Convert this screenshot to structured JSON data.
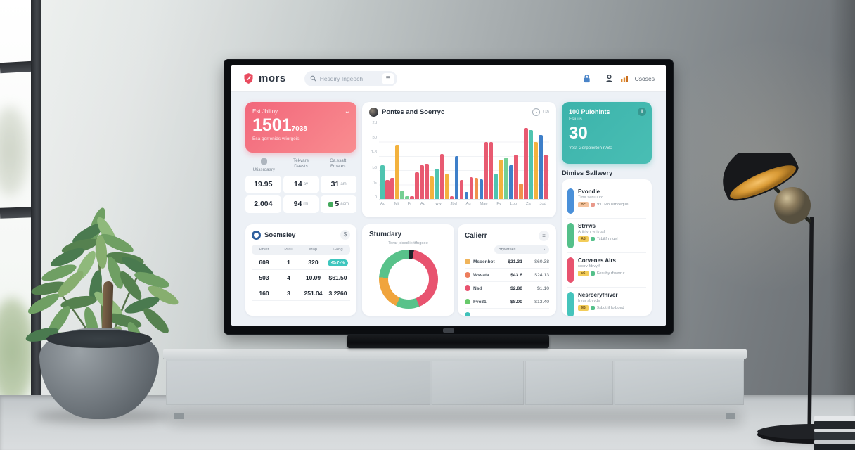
{
  "palette": {
    "t": "#4fc4b0",
    "r": "#e85a71",
    "y": "#f3b23e",
    "g": "#74cf93",
    "b": "#3e7fc9",
    "o": "#f0924d"
  },
  "topbar": {
    "brand": "mors",
    "search_placeholder": "Hesdiry Ingeoch",
    "right_label": "Csoses"
  },
  "kpi_pink": {
    "title": "Est Jhliloy",
    "value": "1501",
    "suffix": "7038",
    "subtitle": "Esa gerrenids vriorgeis"
  },
  "stats": {
    "columns": [
      {
        "l1": "",
        "l2": "Utissroasry",
        "icon": true
      },
      {
        "l1": "Tekvars",
        "l2": "Daests",
        "icon": false
      },
      {
        "l1": "Ca,ssaft",
        "l2": "Froates",
        "icon": false
      }
    ],
    "rows": [
      [
        {
          "v": "19.95",
          "u": ""
        },
        {
          "v": "14",
          "u": "ay"
        },
        {
          "v": "31",
          "u": "am"
        }
      ],
      [
        {
          "v": "2.004",
          "u": ""
        },
        {
          "v": "94",
          "u": "rm"
        },
        {
          "v": "5",
          "u": "aom",
          "icon": "green"
        }
      ]
    ]
  },
  "chart_card": {
    "title": "Pontes and Soerryc",
    "action": "Ua"
  },
  "kpi_teal": {
    "title": "100 Pulohints",
    "subtitle": "Esiuus",
    "value": "30",
    "footer": "Yest Gerpolerteh n/B0"
  },
  "sidebar": {
    "title": "Dimies Sallwery",
    "items": [
      {
        "pill": "#4a90d9",
        "title": "Evondie",
        "sub": "Trna seruuurd",
        "badge": "Bc",
        "badge_color": "#f5c39e",
        "note": "9:C Mousrrvteque",
        "note_icon": "#e8988a"
      },
      {
        "pill": "#54c08a",
        "title": "Strrws",
        "sub": "Ariirfvrr vnjvusf",
        "badge": "A8",
        "badge_color": "#f3cd5a",
        "note": "Tsb&frryfuel",
        "note_icon": "#54c08a"
      },
      {
        "pill": "#e8536f",
        "title": "Corvenes Airs",
        "sub": "sosrv fdrvyjf",
        "badge": "v6",
        "badge_color": "#f3cd5a",
        "note": "Fesuby rfswvrut",
        "note_icon": "#54c08a"
      },
      {
        "pill": "#45c4bc",
        "title": "Nesroeryfniver",
        "sub": "frvur sbyyds",
        "badge": "9B",
        "badge_color": "#f3cd5a",
        "note": "9sbotrif fotbued",
        "note_icon": "#54c08a"
      }
    ]
  },
  "table_card": {
    "title": "Soemsley",
    "button": "$",
    "headers": [
      "Prvet",
      "Prau",
      "Map",
      "Gang"
    ],
    "rows": [
      {
        "c": [
          "609",
          "1",
          "320",
          "45r7y%"
        ],
        "pill": 3
      },
      {
        "c": [
          "503",
          "4",
          "10.09",
          "$61.50"
        ],
        "pill": -1
      },
      {
        "c": [
          "160",
          "3",
          "251.04",
          "3.2260"
        ],
        "pill": -1
      }
    ]
  },
  "donut_card": {
    "title": "Stumdary",
    "subtitle": "Torar jdsed ix ttfngsoe"
  },
  "breakdown_card": {
    "title": "Calierr",
    "dropdown": "Brywtrees",
    "rows": [
      {
        "dot": "#f0b45a",
        "label": "Msoenbot",
        "v1": "$21.31",
        "v2": "$60.38"
      },
      {
        "dot": "#ed7d5c",
        "label": "Wsvata",
        "v1": "$43.6",
        "v2": "$24.13"
      },
      {
        "dot": "#e8536f",
        "label": "Nsd",
        "v1": "$2.80",
        "v2": "$1.10"
      },
      {
        "dot": "#67c96a",
        "label": "Fvo31",
        "v1": "$8.00",
        "v2": "$13.40"
      },
      {
        "dot": "#3fc1b9",
        "label": "",
        "v1": "",
        "v2": ""
      }
    ]
  },
  "chart_data": [
    {
      "type": "bar",
      "title": "Pontes and Soerryc",
      "ylim": [
        0,
        100
      ],
      "grid": true,
      "ytick_labels": [
        "2d",
        "b0",
        "1-8",
        "b3",
        "7E",
        "0"
      ],
      "categories": [
        "Ad",
        "Mi",
        "Fr",
        "Ap",
        "Iww",
        "Jbd",
        "Ag",
        "Mae",
        "Fy",
        "Lbo",
        "Za",
        "Jod"
      ],
      "groups": [
        [
          {
            "c": "t",
            "v": 48
          },
          {
            "c": "r",
            "v": 27
          },
          {
            "c": "r",
            "v": 30
          }
        ],
        [
          {
            "c": "y",
            "v": 76
          },
          {
            "c": "g",
            "v": 12
          },
          {
            "c": "g",
            "v": 4
          }
        ],
        [
          {
            "c": "r",
            "v": 4
          },
          {
            "c": "r",
            "v": 38
          },
          {
            "c": "r",
            "v": 48
          }
        ],
        [
          {
            "c": "r",
            "v": 50
          },
          {
            "c": "y",
            "v": 32
          },
          {
            "c": "t",
            "v": 43
          }
        ],
        [
          {
            "c": "r",
            "v": 63
          },
          {
            "c": "y",
            "v": 36
          },
          {
            "c": "r",
            "v": 4
          }
        ],
        [
          {
            "c": "b",
            "v": 60
          },
          {
            "c": "r",
            "v": 27
          },
          {
            "c": "b",
            "v": 10
          }
        ],
        [
          {
            "c": "r",
            "v": 31
          },
          {
            "c": "o",
            "v": 30
          },
          {
            "c": "b",
            "v": 28
          }
        ],
        [
          {
            "c": "r",
            "v": 80
          },
          {
            "c": "r",
            "v": 80
          },
          {
            "c": "t",
            "v": 36
          }
        ],
        [
          {
            "c": "y",
            "v": 55
          },
          {
            "c": "g",
            "v": 58
          },
          {
            "c": "b",
            "v": 48
          }
        ],
        [
          {
            "c": "r",
            "v": 62
          },
          {
            "c": "o",
            "v": 22
          }
        ],
        [
          {
            "c": "r",
            "v": 100
          },
          {
            "c": "t",
            "v": 97
          },
          {
            "c": "y",
            "v": 80
          }
        ],
        [
          {
            "c": "b",
            "v": 90
          },
          {
            "c": "r",
            "v": 62
          }
        ]
      ]
    },
    {
      "type": "pie",
      "title": "Stumdary",
      "segments": [
        {
          "value": 3,
          "color": "#20242a"
        },
        {
          "value": 41,
          "color": "#e8536f"
        },
        {
          "value": 13,
          "color": "#58c28a"
        },
        {
          "value": 19,
          "color": "#f0a43c"
        },
        {
          "value": 24,
          "color": "#58c28a"
        }
      ]
    }
  ]
}
